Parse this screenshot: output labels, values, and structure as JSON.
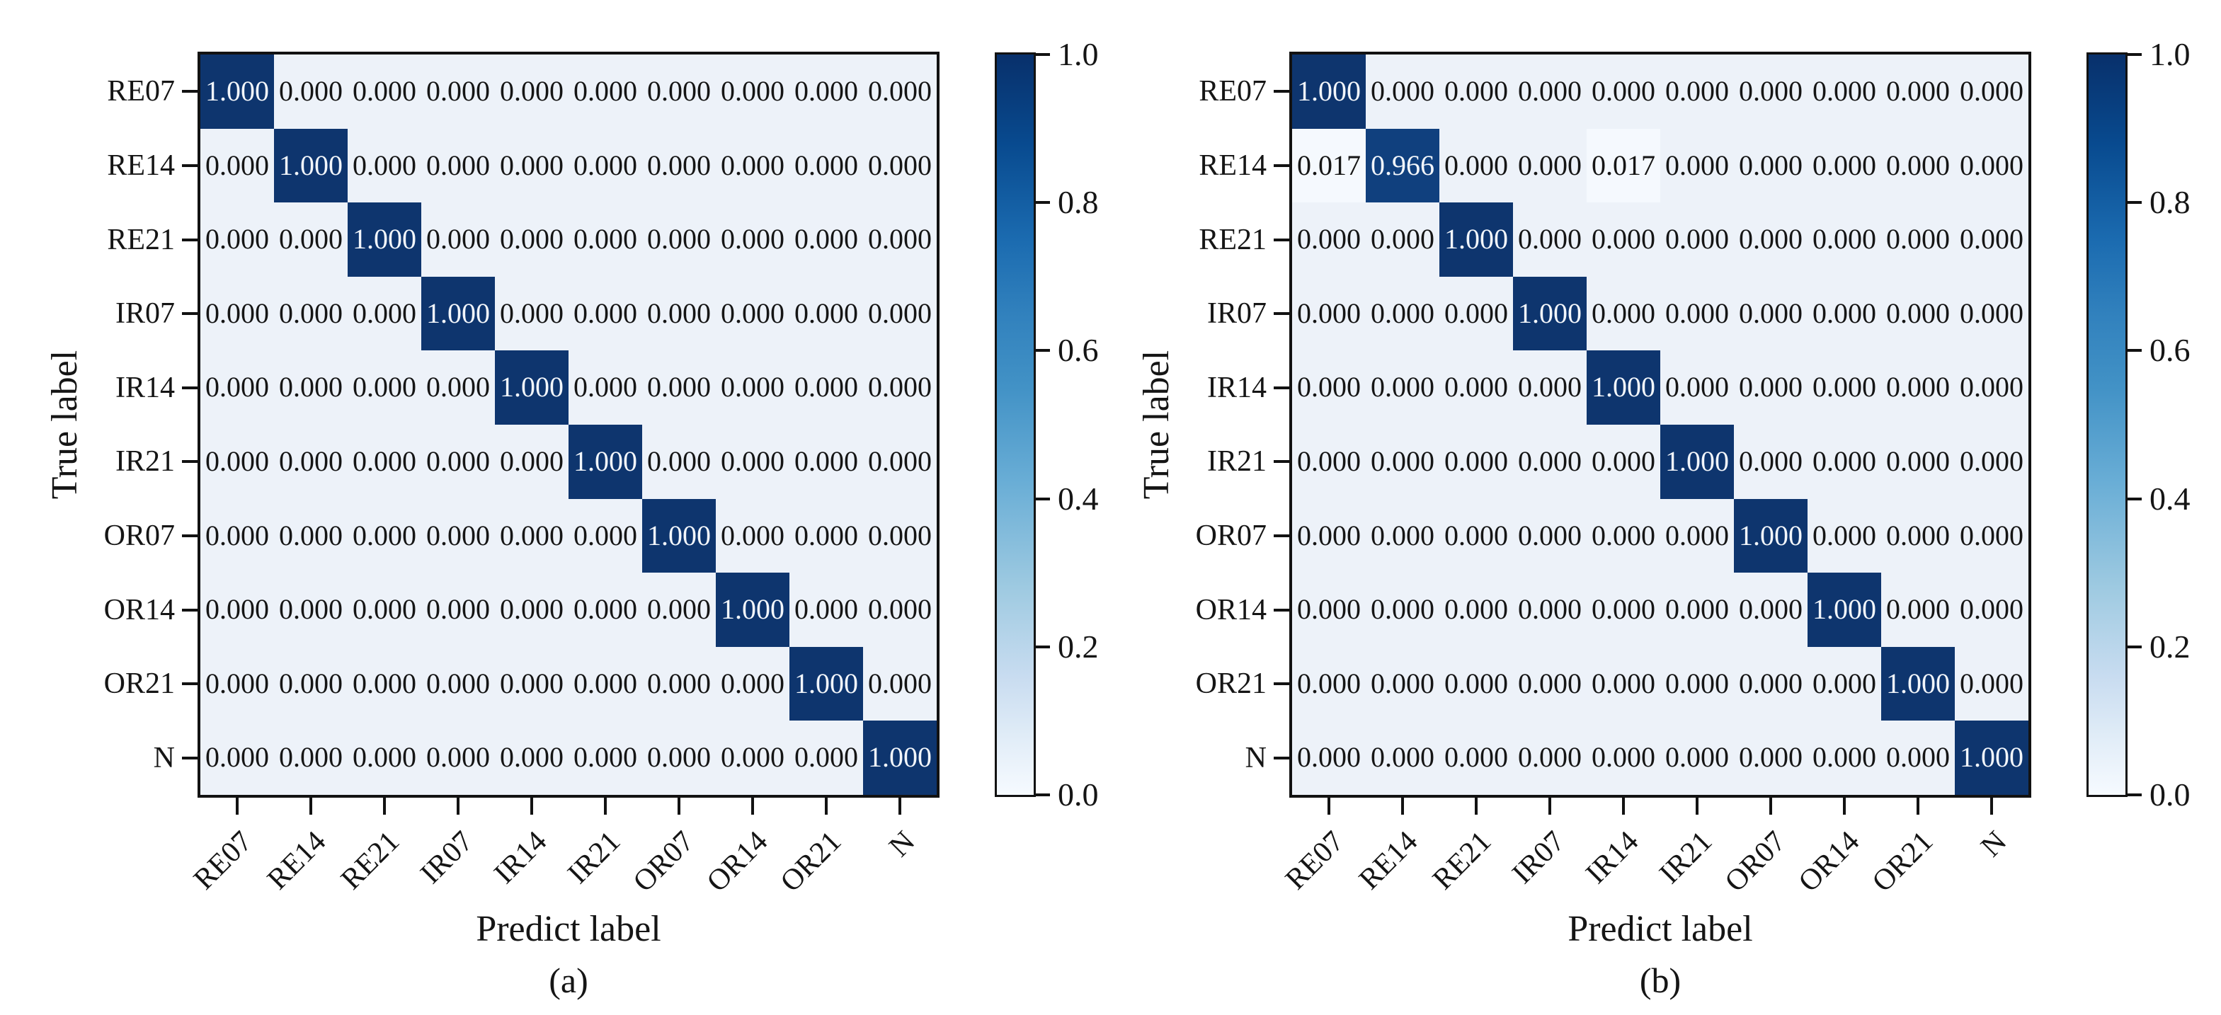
{
  "chart_data": [
    {
      "type": "heatmap",
      "panel_caption": "(a)",
      "xlabel": "Predict label",
      "ylabel": "True label",
      "categories": [
        "RE07",
        "RE14",
        "RE21",
        "IR07",
        "IR14",
        "IR21",
        "OR07",
        "OR14",
        "OR21",
        "N"
      ],
      "matrix": [
        [
          1.0,
          0.0,
          0.0,
          0.0,
          0.0,
          0.0,
          0.0,
          0.0,
          0.0,
          0.0
        ],
        [
          0.0,
          1.0,
          0.0,
          0.0,
          0.0,
          0.0,
          0.0,
          0.0,
          0.0,
          0.0
        ],
        [
          0.0,
          0.0,
          1.0,
          0.0,
          0.0,
          0.0,
          0.0,
          0.0,
          0.0,
          0.0
        ],
        [
          0.0,
          0.0,
          0.0,
          1.0,
          0.0,
          0.0,
          0.0,
          0.0,
          0.0,
          0.0
        ],
        [
          0.0,
          0.0,
          0.0,
          0.0,
          1.0,
          0.0,
          0.0,
          0.0,
          0.0,
          0.0
        ],
        [
          0.0,
          0.0,
          0.0,
          0.0,
          0.0,
          1.0,
          0.0,
          0.0,
          0.0,
          0.0
        ],
        [
          0.0,
          0.0,
          0.0,
          0.0,
          0.0,
          0.0,
          1.0,
          0.0,
          0.0,
          0.0
        ],
        [
          0.0,
          0.0,
          0.0,
          0.0,
          0.0,
          0.0,
          0.0,
          1.0,
          0.0,
          0.0
        ],
        [
          0.0,
          0.0,
          0.0,
          0.0,
          0.0,
          0.0,
          0.0,
          0.0,
          1.0,
          0.0
        ],
        [
          0.0,
          0.0,
          0.0,
          0.0,
          0.0,
          0.0,
          0.0,
          0.0,
          0.0,
          1.0
        ]
      ],
      "value_format_decimals": 3,
      "colorbar_ticks": [
        1.0,
        0.8,
        0.6,
        0.4,
        0.2,
        0.0
      ],
      "colormap": "Blues",
      "value_range": [
        0.0,
        1.0
      ],
      "grid": false,
      "legend_position": "right-colorbar"
    },
    {
      "type": "heatmap",
      "panel_caption": "(b)",
      "xlabel": "Predict label",
      "ylabel": "True label",
      "categories": [
        "RE07",
        "RE14",
        "RE21",
        "IR07",
        "IR14",
        "IR21",
        "OR07",
        "OR14",
        "OR21",
        "N"
      ],
      "matrix": [
        [
          1.0,
          0.0,
          0.0,
          0.0,
          0.0,
          0.0,
          0.0,
          0.0,
          0.0,
          0.0
        ],
        [
          0.017,
          0.966,
          0.0,
          0.0,
          0.017,
          0.0,
          0.0,
          0.0,
          0.0,
          0.0
        ],
        [
          0.0,
          0.0,
          1.0,
          0.0,
          0.0,
          0.0,
          0.0,
          0.0,
          0.0,
          0.0
        ],
        [
          0.0,
          0.0,
          0.0,
          1.0,
          0.0,
          0.0,
          0.0,
          0.0,
          0.0,
          0.0
        ],
        [
          0.0,
          0.0,
          0.0,
          0.0,
          1.0,
          0.0,
          0.0,
          0.0,
          0.0,
          0.0
        ],
        [
          0.0,
          0.0,
          0.0,
          0.0,
          0.0,
          1.0,
          0.0,
          0.0,
          0.0,
          0.0
        ],
        [
          0.0,
          0.0,
          0.0,
          0.0,
          0.0,
          0.0,
          1.0,
          0.0,
          0.0,
          0.0
        ],
        [
          0.0,
          0.0,
          0.0,
          0.0,
          0.0,
          0.0,
          0.0,
          1.0,
          0.0,
          0.0
        ],
        [
          0.0,
          0.0,
          0.0,
          0.0,
          0.0,
          0.0,
          0.0,
          0.0,
          1.0,
          0.0
        ],
        [
          0.0,
          0.0,
          0.0,
          0.0,
          0.0,
          0.0,
          0.0,
          0.0,
          0.0,
          1.0
        ]
      ],
      "value_format_decimals": 3,
      "colorbar_ticks": [
        1.0,
        0.8,
        0.6,
        0.4,
        0.2,
        0.0
      ],
      "colormap": "Blues",
      "value_range": [
        0.0,
        1.0
      ],
      "grid": false,
      "legend_position": "right-colorbar"
    }
  ],
  "styles": {
    "bg_cell": "#edf2f9",
    "faint_cell": "#f5f9fe",
    "near_dark_cell": "#10407e",
    "dark_cell": "#0e356e",
    "text_dark": "#151515",
    "text_light": "#f2f6fb",
    "frame": "#121212",
    "colorbar_top": "#08306b",
    "colorbar_bottom": "#f6faff"
  }
}
